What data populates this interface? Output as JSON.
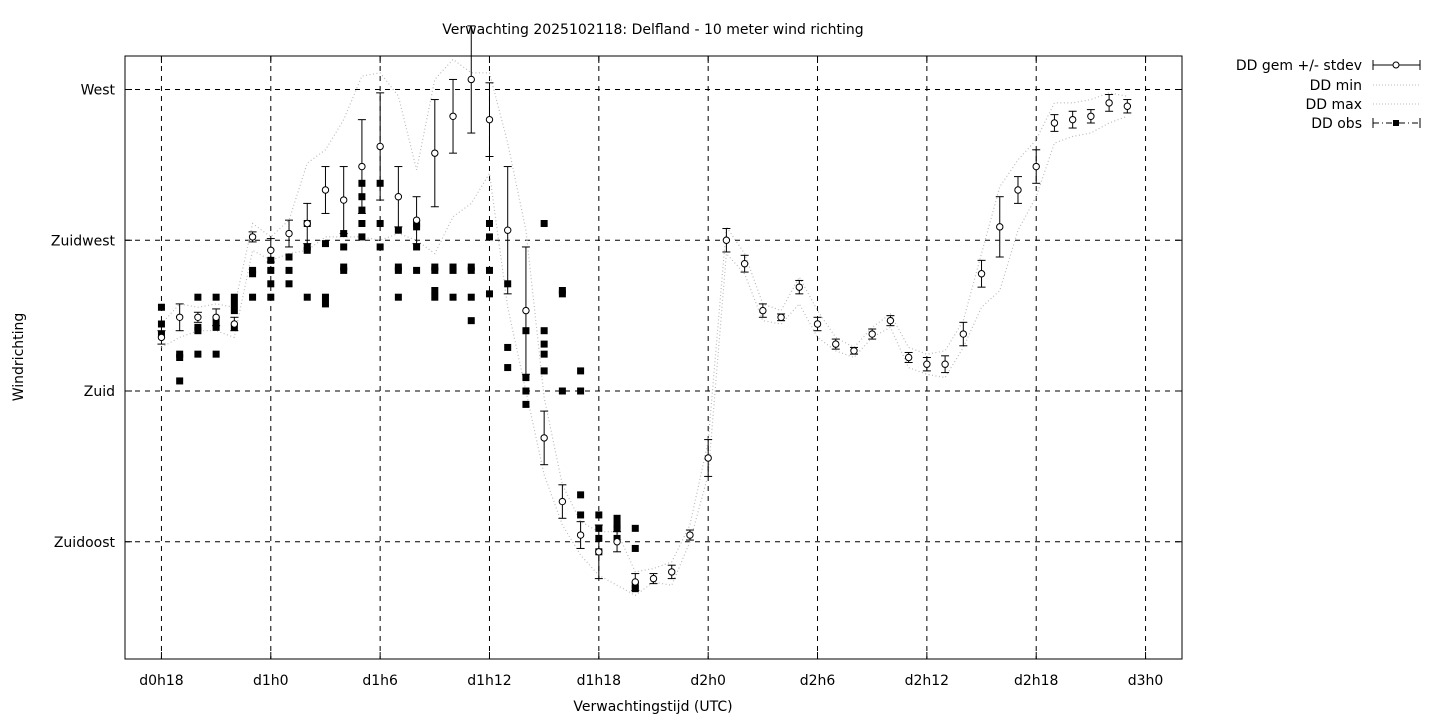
{
  "chart_data": {
    "type": "scatter",
    "title": "Verwachting 2025102118: Delfland - 10 meter wind richting",
    "xlabel": "Verwachtingstijd (UTC)",
    "ylabel": "Windrichting",
    "x_unit": "hours since forecast start",
    "xlim": [
      -2,
      56
    ],
    "ylim": [
      100,
      280
    ],
    "x_ticks": [
      {
        "x": 0,
        "label": "d0h18"
      },
      {
        "x": 6,
        "label": "d1h0"
      },
      {
        "x": 12,
        "label": "d1h6"
      },
      {
        "x": 18,
        "label": "d1h12"
      },
      {
        "x": 24,
        "label": "d1h18"
      },
      {
        "x": 30,
        "label": "d2h0"
      },
      {
        "x": 36,
        "label": "d2h6"
      },
      {
        "x": 42,
        "label": "d2h12"
      },
      {
        "x": 48,
        "label": "d2h18"
      },
      {
        "x": 54,
        "label": "d3h0"
      }
    ],
    "y_ticks": [
      {
        "y": 270,
        "label": "West"
      },
      {
        "y": 225,
        "label": "Zuidwest"
      },
      {
        "y": 180,
        "label": "Zuid"
      },
      {
        "y": 135,
        "label": "Zuidoost"
      }
    ],
    "grid": true,
    "legend_position": "right, outside plot",
    "legend": [
      "DD gem +/- stdev",
      "DD min",
      "DD max",
      "DD obs"
    ],
    "series": [
      {
        "name": "DD gem +/- stdev",
        "kind": "errorbar",
        "color": "#000000",
        "points": [
          {
            "x": 0,
            "y": 196,
            "sd": 2
          },
          {
            "x": 1,
            "y": 202,
            "sd": 4
          },
          {
            "x": 2,
            "y": 202,
            "sd": 1.5
          },
          {
            "x": 3,
            "y": 202,
            "sd": 2.5
          },
          {
            "x": 4,
            "y": 200,
            "sd": 2
          },
          {
            "x": 5,
            "y": 226,
            "sd": 1.5
          },
          {
            "x": 6,
            "y": 222,
            "sd": 3.5
          },
          {
            "x": 7,
            "y": 227,
            "sd": 4
          },
          {
            "x": 8,
            "y": 230,
            "sd": 6
          },
          {
            "x": 9,
            "y": 240,
            "sd": 7
          },
          {
            "x": 10,
            "y": 237,
            "sd": 10
          },
          {
            "x": 11,
            "y": 247,
            "sd": 14
          },
          {
            "x": 12,
            "y": 253,
            "sd": 16
          },
          {
            "x": 13,
            "y": 238,
            "sd": 9
          },
          {
            "x": 14,
            "y": 231,
            "sd": 7
          },
          {
            "x": 15,
            "y": 251,
            "sd": 16
          },
          {
            "x": 16,
            "y": 262,
            "sd": 11
          },
          {
            "x": 17,
            "y": 273,
            "sd": 16
          },
          {
            "x": 18,
            "y": 261,
            "sd": 11
          },
          {
            "x": 19,
            "y": 228,
            "sd": 19
          },
          {
            "x": 20,
            "y": 204,
            "sd": 19
          },
          {
            "x": 21,
            "y": 166,
            "sd": 8
          },
          {
            "x": 22,
            "y": 147,
            "sd": 5
          },
          {
            "x": 23,
            "y": 137,
            "sd": 4
          },
          {
            "x": 24,
            "y": 132,
            "sd": 8
          },
          {
            "x": 25,
            "y": 135,
            "sd": 3
          },
          {
            "x": 26,
            "y": 123,
            "sd": 2.5
          },
          {
            "x": 27,
            "y": 124,
            "sd": 1.5
          },
          {
            "x": 28,
            "y": 126,
            "sd": 2
          },
          {
            "x": 29,
            "y": 137,
            "sd": 1.5
          },
          {
            "x": 30,
            "y": 160,
            "sd": 5.5
          },
          {
            "x": 31,
            "y": 225,
            "sd": 3.5
          },
          {
            "x": 32,
            "y": 218,
            "sd": 2.5
          },
          {
            "x": 33,
            "y": 204,
            "sd": 2
          },
          {
            "x": 34,
            "y": 202,
            "sd": 1
          },
          {
            "x": 35,
            "y": 211,
            "sd": 2
          },
          {
            "x": 36,
            "y": 200,
            "sd": 2
          },
          {
            "x": 37,
            "y": 194,
            "sd": 1.5
          },
          {
            "x": 38,
            "y": 192,
            "sd": 1
          },
          {
            "x": 39,
            "y": 197,
            "sd": 1.5
          },
          {
            "x": 40,
            "y": 201,
            "sd": 1.5
          },
          {
            "x": 41,
            "y": 190,
            "sd": 1.5
          },
          {
            "x": 42,
            "y": 188,
            "sd": 2
          },
          {
            "x": 43,
            "y": 188,
            "sd": 2.5
          },
          {
            "x": 44,
            "y": 197,
            "sd": 3.5
          },
          {
            "x": 45,
            "y": 215,
            "sd": 4
          },
          {
            "x": 46,
            "y": 229,
            "sd": 9
          },
          {
            "x": 47,
            "y": 240,
            "sd": 4
          },
          {
            "x": 48,
            "y": 247,
            "sd": 5
          },
          {
            "x": 49,
            "y": 260,
            "sd": 2.5
          },
          {
            "x": 50,
            "y": 261,
            "sd": 2.5
          },
          {
            "x": 51,
            "y": 262,
            "sd": 2
          },
          {
            "x": 52,
            "y": 266,
            "sd": 2.5
          },
          {
            "x": 53,
            "y": 265,
            "sd": 2
          }
        ]
      },
      {
        "name": "DD min",
        "kind": "dotted-line",
        "color": "#bbbbbb",
        "x": [
          0,
          1,
          2,
          3,
          4,
          5,
          6,
          7,
          8,
          9,
          10,
          11,
          12,
          13,
          14,
          15,
          16,
          17,
          18,
          19,
          20,
          21,
          22,
          23,
          24,
          25,
          26,
          27,
          28,
          29,
          30,
          31,
          32,
          33,
          34,
          35,
          36,
          37,
          38,
          39,
          40,
          41,
          42,
          43,
          44,
          45,
          46,
          47,
          48,
          49,
          50,
          51,
          52,
          53
        ],
        "values": [
          193,
          196,
          198,
          198,
          196,
          222,
          219,
          221,
          222,
          226,
          226,
          226,
          225,
          227,
          225,
          221,
          232,
          236,
          245,
          205,
          180,
          155,
          140,
          131,
          125,
          122,
          119,
          123,
          122,
          135,
          155,
          221,
          215,
          201,
          200,
          206,
          196,
          192,
          190,
          196,
          199,
          187,
          185,
          184,
          193,
          205,
          210,
          228,
          238,
          254,
          256,
          257,
          260,
          262
        ]
      },
      {
        "name": "DD max",
        "kind": "dotted-line",
        "color": "#bbbbbb",
        "x": [
          0,
          1,
          2,
          3,
          4,
          5,
          6,
          7,
          8,
          9,
          10,
          11,
          12,
          13,
          14,
          15,
          16,
          17,
          18,
          19,
          20,
          21,
          22,
          23,
          24,
          25,
          26,
          27,
          28,
          29,
          30,
          31,
          32,
          33,
          34,
          35,
          36,
          37,
          38,
          39,
          40,
          41,
          42,
          43,
          44,
          45,
          46,
          47,
          48,
          49,
          50,
          51,
          52,
          53
        ],
        "values": [
          200,
          206,
          205,
          206,
          205,
          230,
          226,
          231,
          248,
          252,
          261,
          274,
          275,
          268,
          246,
          273,
          279,
          275,
          275,
          254,
          228,
          178,
          152,
          141,
          138,
          138,
          126,
          127,
          129,
          140,
          165,
          229,
          221,
          206,
          204,
          214,
          204,
          196,
          193,
          199,
          203,
          193,
          191,
          192,
          201,
          221,
          241,
          249,
          255,
          266,
          266,
          267,
          269,
          268
        ]
      },
      {
        "name": "DD obs",
        "kind": "markers",
        "color": "#000000",
        "points": [
          {
            "x": 0,
            "y": 197
          },
          {
            "x": 0,
            "y": 200
          },
          {
            "x": 0,
            "y": 205
          },
          {
            "x": 1,
            "y": 190
          },
          {
            "x": 1,
            "y": 191
          },
          {
            "x": 1,
            "y": 183
          },
          {
            "x": 2,
            "y": 191
          },
          {
            "x": 2,
            "y": 198
          },
          {
            "x": 2,
            "y": 199
          },
          {
            "x": 2,
            "y": 208
          },
          {
            "x": 3,
            "y": 191
          },
          {
            "x": 3,
            "y": 199
          },
          {
            "x": 3,
            "y": 201
          },
          {
            "x": 3,
            "y": 208
          },
          {
            "x": 4,
            "y": 199
          },
          {
            "x": 4,
            "y": 204
          },
          {
            "x": 4,
            "y": 206
          },
          {
            "x": 4,
            "y": 208
          },
          {
            "x": 5,
            "y": 208
          },
          {
            "x": 5,
            "y": 215
          },
          {
            "x": 5,
            "y": 216
          },
          {
            "x": 6,
            "y": 208
          },
          {
            "x": 6,
            "y": 212
          },
          {
            "x": 6,
            "y": 216
          },
          {
            "x": 6,
            "y": 219
          },
          {
            "x": 7,
            "y": 212
          },
          {
            "x": 7,
            "y": 216
          },
          {
            "x": 7,
            "y": 220
          },
          {
            "x": 8,
            "y": 208
          },
          {
            "x": 8,
            "y": 222
          },
          {
            "x": 8,
            "y": 223
          },
          {
            "x": 8,
            "y": 230
          },
          {
            "x": 9,
            "y": 206
          },
          {
            "x": 9,
            "y": 208
          },
          {
            "x": 9,
            "y": 224
          },
          {
            "x": 10,
            "y": 216
          },
          {
            "x": 10,
            "y": 217
          },
          {
            "x": 10,
            "y": 223
          },
          {
            "x": 10,
            "y": 227
          },
          {
            "x": 11,
            "y": 226
          },
          {
            "x": 11,
            "y": 230
          },
          {
            "x": 11,
            "y": 234
          },
          {
            "x": 11,
            "y": 238
          },
          {
            "x": 11,
            "y": 242
          },
          {
            "x": 12,
            "y": 223
          },
          {
            "x": 12,
            "y": 230
          },
          {
            "x": 12,
            "y": 242
          },
          {
            "x": 13,
            "y": 208
          },
          {
            "x": 13,
            "y": 216
          },
          {
            "x": 13,
            "y": 217
          },
          {
            "x": 13,
            "y": 228
          },
          {
            "x": 14,
            "y": 216
          },
          {
            "x": 14,
            "y": 223
          },
          {
            "x": 14,
            "y": 229
          },
          {
            "x": 14,
            "y": 230
          },
          {
            "x": 15,
            "y": 210
          },
          {
            "x": 15,
            "y": 216
          },
          {
            "x": 15,
            "y": 217
          },
          {
            "x": 15,
            "y": 208
          },
          {
            "x": 16,
            "y": 208
          },
          {
            "x": 16,
            "y": 216
          },
          {
            "x": 16,
            "y": 217
          },
          {
            "x": 17,
            "y": 201
          },
          {
            "x": 17,
            "y": 208
          },
          {
            "x": 17,
            "y": 216
          },
          {
            "x": 17,
            "y": 217
          },
          {
            "x": 18,
            "y": 209
          },
          {
            "x": 18,
            "y": 216
          },
          {
            "x": 18,
            "y": 226
          },
          {
            "x": 18,
            "y": 230
          },
          {
            "x": 19,
            "y": 193
          },
          {
            "x": 19,
            "y": 187
          },
          {
            "x": 19,
            "y": 212
          },
          {
            "x": 20,
            "y": 176
          },
          {
            "x": 20,
            "y": 180
          },
          {
            "x": 20,
            "y": 184
          },
          {
            "x": 20,
            "y": 198
          },
          {
            "x": 21,
            "y": 186
          },
          {
            "x": 21,
            "y": 191
          },
          {
            "x": 21,
            "y": 194
          },
          {
            "x": 21,
            "y": 198
          },
          {
            "x": 21,
            "y": 230
          },
          {
            "x": 22,
            "y": 180
          },
          {
            "x": 22,
            "y": 209
          },
          {
            "x": 22,
            "y": 210
          },
          {
            "x": 23,
            "y": 180
          },
          {
            "x": 23,
            "y": 186
          },
          {
            "x": 23,
            "y": 149
          },
          {
            "x": 23,
            "y": 143
          },
          {
            "x": 24,
            "y": 143
          },
          {
            "x": 24,
            "y": 139
          },
          {
            "x": 24,
            "y": 136
          },
          {
            "x": 24,
            "y": 132
          },
          {
            "x": 25,
            "y": 140
          },
          {
            "x": 25,
            "y": 142
          },
          {
            "x": 25,
            "y": 139
          },
          {
            "x": 25,
            "y": 136
          },
          {
            "x": 26,
            "y": 139
          },
          {
            "x": 26,
            "y": 133
          },
          {
            "x": 26,
            "y": 121
          },
          {
            "x": 26,
            "y": 122
          }
        ]
      }
    ]
  }
}
